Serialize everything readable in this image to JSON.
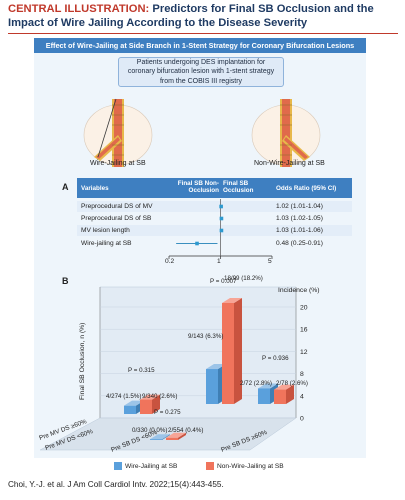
{
  "title_lead": "CENTRAL ILLUSTRATION:",
  "title_rest": "Predictors for Final SB Occlusion and the Impact of Wire Jailing According to the Disease Severity",
  "banner": "Effect of Wire-Jailing at Side Branch in 1-Stent Strategy for Coronary Bifurcation Lesions",
  "study_box": "Patients undergoing DES implantation for coronary bifurcation lesion with 1-stent strategy from the COBIS III registry",
  "left_caption": "Wire-Jailing at SB",
  "right_caption": "Non-Wire-Jailing at SB",
  "colors": {
    "blue": "#5aa0dc",
    "red": "#f0745c",
    "accent": "#3e7fc1",
    "title_red": "#c0392b"
  },
  "chart_data": [
    {
      "type": "forest",
      "panel_label": "A",
      "columns": [
        "Variables",
        "Final SB Non-Occlusion",
        "Final SB Occlusion",
        "Odds Ratio (95% CI)"
      ],
      "rows": [
        {
          "variable": "Preprocedural DS of MV",
          "or": 1.02,
          "lo": 1.01,
          "hi": 1.04,
          "text": "1.02 (1.01-1.04)"
        },
        {
          "variable": "Preprocedural DS of SB",
          "or": 1.03,
          "lo": 1.02,
          "hi": 1.05,
          "text": "1.03 (1.02-1.05)"
        },
        {
          "variable": "MV lesion length",
          "or": 1.03,
          "lo": 1.01,
          "hi": 1.06,
          "text": "1.03 (1.01-1.06)"
        },
        {
          "variable": "Wire-jailing at SB",
          "or": 0.48,
          "lo": 0.25,
          "hi": 0.91,
          "text": "0.48 (0.25-0.91)"
        }
      ],
      "x_ticks": [
        "0.2",
        "1",
        "5"
      ],
      "x_scale": "log",
      "xlim": [
        0.2,
        5
      ]
    },
    {
      "type": "bar",
      "panel_label": "B",
      "ylabel": "Final SB Occlusion, n (%)",
      "y2label": "Incidence (%)",
      "ylim": [
        0,
        20
      ],
      "y_ticks": [
        "0",
        "4",
        "8",
        "12",
        "16",
        "20"
      ],
      "sb_categories": [
        "Pre SB DS <60%",
        "Pre SB DS ≥60%"
      ],
      "mv_categories": [
        "Pre MV DS <60%",
        "Pre MV DS ≥60%"
      ],
      "series": [
        {
          "name": "Wire-Jailing at SB",
          "color": "#5aa0dc"
        },
        {
          "name": "Non-Wire-Jailing at SB",
          "color": "#f0745c"
        }
      ],
      "groups": [
        {
          "mv": "Pre MV DS ≥60%",
          "sb": "Pre SB DS <60%",
          "wj": {
            "value": 1.5,
            "label": "4/274 (1.5%)"
          },
          "nwj": {
            "value": 2.6,
            "label": "9/340 (2.6%)"
          },
          "p": "P = 0.315"
        },
        {
          "mv": "Pre MV DS <60%",
          "sb": "Pre SB DS <60%",
          "wj": {
            "value": 0.0,
            "label": "0/330 (0.0%)"
          },
          "nwj": {
            "value": 0.4,
            "label": "2/554 (0.4%)"
          },
          "p": "P = 0.275"
        },
        {
          "mv": "Pre MV DS ≥60%",
          "sb": "Pre SB DS ≥60%",
          "wj": {
            "value": 6.3,
            "label": "9/143 (6.3%)"
          },
          "nwj": {
            "value": 18.2,
            "label": "18/99 (18.2%)"
          },
          "p": "P = 0.007"
        },
        {
          "mv": "Pre MV DS <60%",
          "sb": "Pre SB DS ≥60%",
          "wj": {
            "value": 2.8,
            "label": "2/72 (2.8%)"
          },
          "nwj": {
            "value": 2.6,
            "label": "2/78 (2.6%)"
          },
          "p": "P = 0.936"
        }
      ]
    }
  ],
  "citation": "Choi, Y.-J. et al. J Am Coll Cardiol Intv. 2022;15(4):443-455."
}
